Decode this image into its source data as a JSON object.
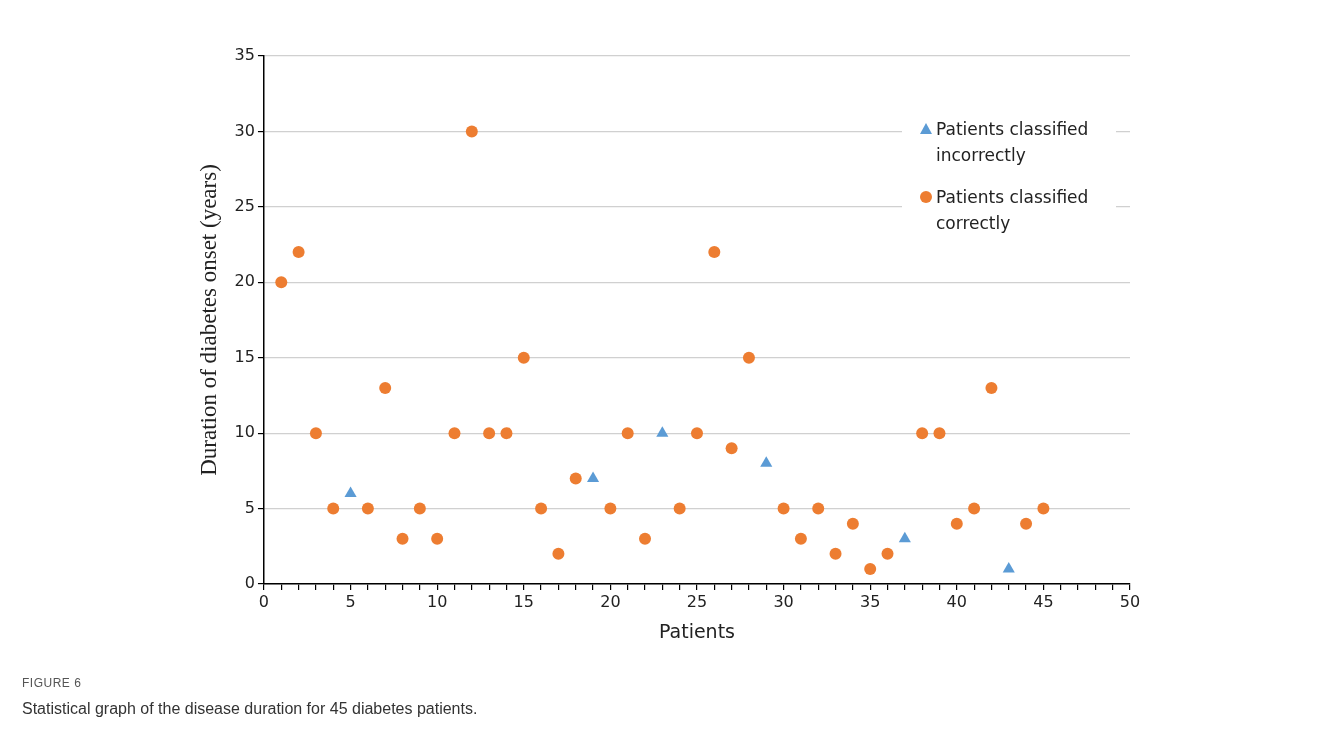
{
  "chart_data": {
    "type": "scatter",
    "xlabel": "Patients",
    "ylabel": "Duration of diabetes onset (years)",
    "annotations": [
      "FIGURE 6",
      "Statistical graph of the disease duration for 45 diabetes patients."
    ],
    "xlim": [
      0,
      50
    ],
    "xticks": [
      0,
      {
        "value": 1,
        "label": null
      },
      {
        "value": 2,
        "label": null
      },
      {
        "value": 3,
        "label": null
      },
      {
        "value": 4,
        "label": null
      },
      5,
      {
        "value": 6,
        "label": null
      },
      {
        "value": 7,
        "label": null
      },
      {
        "value": 8,
        "label": null
      },
      {
        "value": 9,
        "label": null
      },
      10,
      {
        "value": 11,
        "label": null
      },
      {
        "value": 12,
        "label": null
      },
      {
        "value": 13,
        "label": null
      },
      {
        "value": 14,
        "label": null
      },
      15,
      {
        "value": 16,
        "label": null
      },
      {
        "value": 17,
        "label": null
      },
      {
        "value": 18,
        "label": null
      },
      {
        "value": 19,
        "label": null
      },
      20,
      {
        "value": 21,
        "label": null
      },
      {
        "value": 22,
        "label": null
      },
      {
        "value": 23,
        "label": null
      },
      {
        "value": 24,
        "label": null
      },
      25,
      {
        "value": 26,
        "label": null
      },
      {
        "value": 27,
        "label": null
      },
      {
        "value": 28,
        "label": null
      },
      {
        "value": 29,
        "label": null
      },
      30,
      {
        "value": 31,
        "label": null
      },
      {
        "value": 32,
        "label": null
      },
      {
        "value": 33,
        "label": null
      },
      {
        "value": 34,
        "label": null
      },
      35,
      {
        "value": 36,
        "label": null
      },
      {
        "value": 37,
        "label": null
      },
      {
        "value": 38,
        "label": null
      },
      {
        "value": 39,
        "label": null
      },
      40,
      {
        "value": 41,
        "label": null
      },
      {
        "value": 42,
        "label": null
      },
      {
        "value": 43,
        "label": null
      },
      {
        "value": 44,
        "label": null
      },
      45,
      {
        "value": 46,
        "label": null
      },
      {
        "value": 47,
        "label": null
      },
      {
        "value": 48,
        "label": null
      },
      {
        "value": 49,
        "label": null
      },
      50
    ],
    "ylim": [
      0,
      35
    ],
    "yticks": [
      0,
      5,
      10,
      15,
      20,
      25,
      30,
      35
    ],
    "grid": "y",
    "legend": "top right",
    "series": [
      {
        "name": "Patients classified incorrectly",
        "color": "#5b9bd5",
        "marker": "triangle",
        "x": [
          5,
          19,
          23,
          29,
          37,
          43
        ],
        "values": [
          6,
          7,
          10,
          8,
          3,
          1
        ]
      },
      {
        "name": "Patients classified correctly",
        "color": "#ed7d31",
        "marker": "circle",
        "x": [
          1,
          2,
          3,
          4,
          6,
          7,
          8,
          9,
          10,
          11,
          12,
          13,
          14,
          15,
          16,
          17,
          18,
          20,
          21,
          22,
          24,
          25,
          26,
          27,
          28,
          30,
          31,
          32,
          33,
          34,
          35,
          36,
          38,
          39,
          40,
          41,
          42,
          44,
          45
        ],
        "values": [
          20,
          22,
          10,
          5,
          5,
          13,
          3,
          5,
          3,
          10,
          30,
          10,
          10,
          15,
          5,
          2,
          7,
          5,
          10,
          3,
          5,
          10,
          22,
          9,
          15,
          5,
          3,
          5,
          2,
          4,
          1,
          2,
          10,
          10,
          4,
          5,
          13,
          4,
          5
        ]
      }
    ]
  }
}
